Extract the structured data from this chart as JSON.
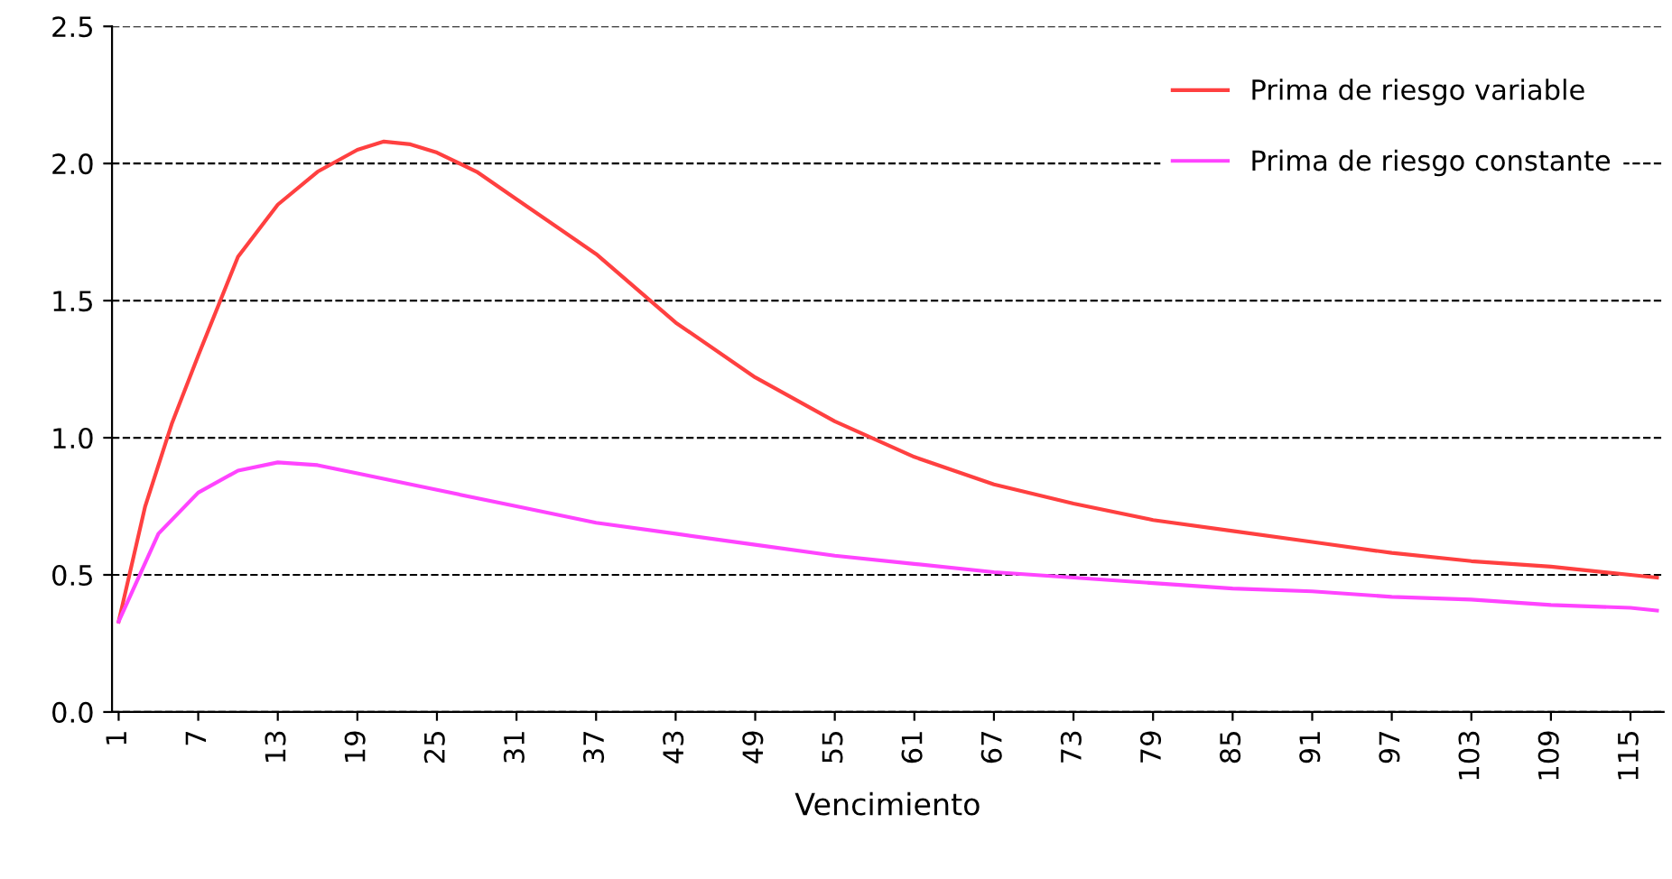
{
  "chart_data": {
    "type": "line",
    "xlabel": "Vencimiento",
    "xlim": [
      0.5,
      117.5
    ],
    "xticks": [
      1,
      7,
      13,
      19,
      25,
      31,
      37,
      43,
      49,
      55,
      61,
      67,
      73,
      79,
      85,
      91,
      97,
      103,
      109,
      115
    ],
    "ylim": [
      0,
      2.5
    ],
    "yticks": [
      {
        "value": 0,
        "label": "0.0"
      },
      {
        "value": 0.5,
        "label": "0.5"
      },
      {
        "value": 1,
        "label": "1.0"
      },
      {
        "value": 1.5,
        "label": "1.5"
      },
      {
        "value": 2,
        "label": "2.0"
      },
      {
        "value": 2.5,
        "label": "2.5"
      }
    ],
    "grid": "y",
    "legend": "top right",
    "marker": "none",
    "line_style": "solid",
    "series": [
      {
        "name": "Prima de riesgo variable",
        "color": "#ff4040",
        "x": [
          1,
          3,
          5,
          7,
          10,
          13,
          16,
          19,
          21,
          23,
          25,
          28,
          31,
          37,
          43,
          49,
          55,
          61,
          67,
          73,
          79,
          85,
          91,
          97,
          103,
          109,
          115,
          117
        ],
        "values": [
          0.33,
          0.75,
          1.05,
          1.3,
          1.66,
          1.85,
          1.97,
          2.05,
          2.08,
          2.07,
          2.04,
          1.97,
          1.87,
          1.67,
          1.42,
          1.22,
          1.06,
          0.93,
          0.83,
          0.76,
          0.7,
          0.66,
          0.62,
          0.58,
          0.55,
          0.53,
          0.5,
          0.49
        ]
      },
      {
        "name": "Prima de riesgo constante",
        "color": "#ff44ff",
        "x": [
          1,
          4,
          7,
          10,
          13,
          16,
          19,
          25,
          31,
          37,
          43,
          49,
          55,
          61,
          67,
          73,
          79,
          85,
          91,
          97,
          103,
          109,
          115,
          117
        ],
        "values": [
          0.33,
          0.65,
          0.8,
          0.88,
          0.91,
          0.9,
          0.87,
          0.81,
          0.75,
          0.69,
          0.65,
          0.61,
          0.57,
          0.54,
          0.51,
          0.49,
          0.47,
          0.45,
          0.44,
          0.42,
          0.41,
          0.39,
          0.38,
          0.37
        ]
      }
    ]
  }
}
